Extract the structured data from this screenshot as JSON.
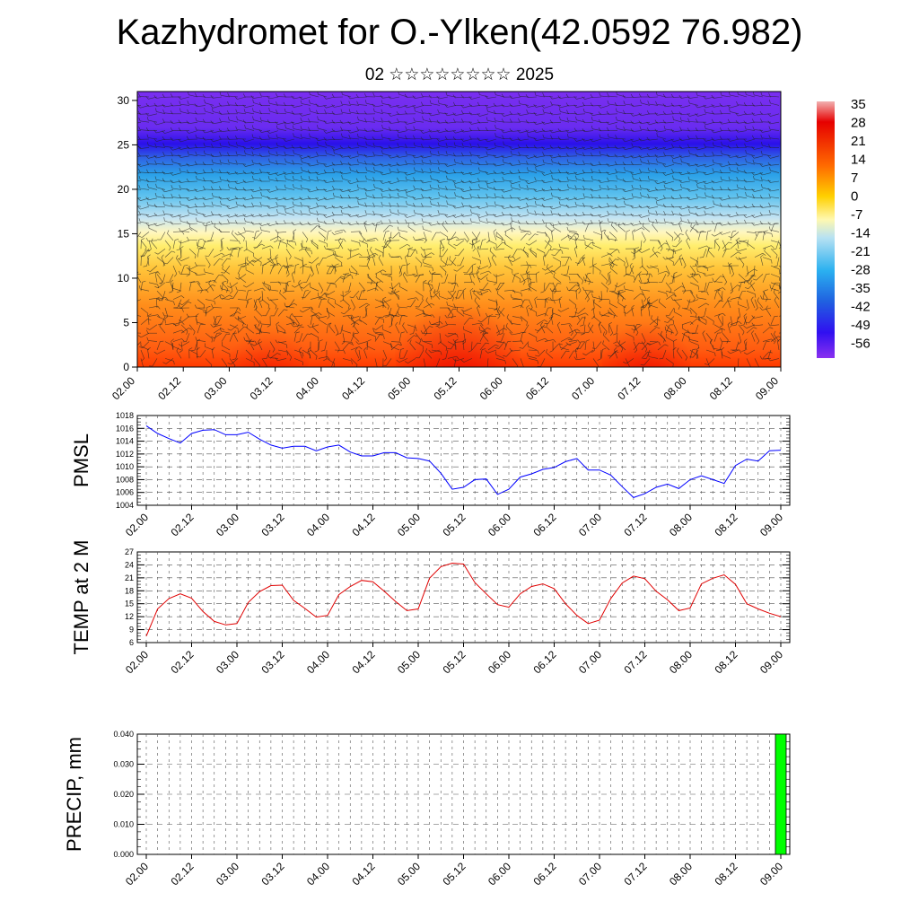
{
  "header": {
    "title": "Kazhydromet for O.-Ylken(42.0592 76.982)",
    "subtitle": "02 ☆☆☆☆☆☆☆☆ 2025"
  },
  "colors": {
    "pmsl_line": "#0000ff",
    "temp_line": "#e00000",
    "precip_bar": "#00ff00",
    "barb": "#222222"
  },
  "chart_data": [
    {
      "type": "heatmap",
      "name": "upper-air-section",
      "x_labels": [
        "02.00",
        "02.12",
        "03.00",
        "03.12",
        "04.00",
        "04.12",
        "05.00",
        "05.12",
        "06.00",
        "06.12",
        "07.00",
        "07.12",
        "08.00",
        "08.12",
        "09.00"
      ],
      "yticks": [
        0,
        5,
        10,
        15,
        20,
        25,
        30
      ],
      "ylim": [
        0,
        31
      ],
      "colorbar_labels": [
        "35",
        "28",
        "21",
        "14",
        "7",
        "0",
        "-7",
        "-14",
        "-21",
        "-28",
        "-35",
        "-42",
        "-49",
        "-56"
      ],
      "overlay": "wind barbs"
    },
    {
      "type": "line",
      "ylabel": "PMSL",
      "ylim": [
        1004,
        1018
      ],
      "yticks": [
        "1004",
        "1006",
        "1008",
        "1010",
        "1012",
        "1014",
        "1016",
        "1018"
      ],
      "x_labels": [
        "02.00",
        "02.12",
        "03.00",
        "03.12",
        "04.00",
        "04.12",
        "05.00",
        "05.12",
        "06.00",
        "06.12",
        "07.00",
        "07.12",
        "08.00",
        "08.12",
        "09.00"
      ],
      "values": [
        1016.4,
        1015.2,
        1014.4,
        1013.7,
        1015.2,
        1015.7,
        1015.8,
        1015.0,
        1015.0,
        1015.4,
        1014.3,
        1013.4,
        1012.9,
        1013.2,
        1013.2,
        1012.5,
        1013.1,
        1013.4,
        1012.3,
        1011.7,
        1011.7,
        1012.2,
        1012.2,
        1011.4,
        1011.3,
        1010.9,
        1009.0,
        1006.5,
        1006.8,
        1008.0,
        1008.1,
        1005.7,
        1006.5,
        1008.4,
        1008.9,
        1009.6,
        1009.9,
        1010.8,
        1011.3,
        1009.5,
        1009.5,
        1008.7,
        1006.9,
        1005.2,
        1005.8,
        1006.8,
        1007.3,
        1006.6,
        1008.0,
        1008.6,
        1008.0,
        1007.4,
        1010.2,
        1011.2,
        1010.9,
        1012.5,
        1012.6
      ]
    },
    {
      "type": "line",
      "ylabel": "TEMP at 2 M",
      "ylim": [
        6,
        27
      ],
      "yticks": [
        "6",
        "9",
        "12",
        "15",
        "18",
        "21",
        "24",
        "27"
      ],
      "x_labels": [
        "02.00",
        "02.12",
        "03.00",
        "03.12",
        "04.00",
        "04.12",
        "05.00",
        "05.12",
        "06.00",
        "06.12",
        "07.00",
        "07.12",
        "08.00",
        "08.12",
        "09.00"
      ],
      "values": [
        7.5,
        13.8,
        16.2,
        17.3,
        16.3,
        13.2,
        10.9,
        10.1,
        10.4,
        15.3,
        17.8,
        19.2,
        19.3,
        15.8,
        13.9,
        11.9,
        12.3,
        17.1,
        19.0,
        20.4,
        20.1,
        17.9,
        15.5,
        13.4,
        13.8,
        20.9,
        23.6,
        24.4,
        24.2,
        19.9,
        17.3,
        14.8,
        14.2,
        17.3,
        19.0,
        19.6,
        18.5,
        15.0,
        12.3,
        10.4,
        11.2,
        16.2,
        19.8,
        21.4,
        20.8,
        17.9,
        15.9,
        13.4,
        14.0,
        19.6,
        20.9,
        21.7,
        19.5,
        15.0,
        13.8,
        12.8,
        12.0
      ]
    },
    {
      "type": "bar",
      "ylabel": "PRECIP, mm",
      "ylim": [
        0,
        0.04
      ],
      "yticks": [
        "0.000",
        "0.010",
        "0.020",
        "0.030",
        "0.040"
      ],
      "x_labels": [
        "02.00",
        "02.12",
        "03.00",
        "03.12",
        "04.00",
        "04.12",
        "05.00",
        "05.12",
        "06.00",
        "06.12",
        "07.00",
        "07.12",
        "08.00",
        "08.12",
        "09.00"
      ],
      "bars": [
        {
          "x": "09.00",
          "value": 0.04
        }
      ]
    }
  ]
}
